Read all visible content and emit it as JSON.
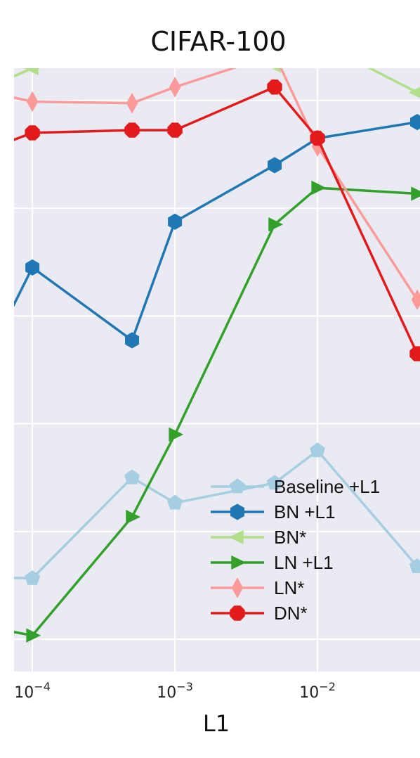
{
  "chart_data": {
    "type": "line",
    "title": "CIFAR-100",
    "xlabel": "L1",
    "ylabel": "",
    "x_scale": "log",
    "xlim": [
      5e-05,
      0.05
    ],
    "ylim": [
      -0.6,
      10.6
    ],
    "grid": true,
    "legend_position": "lower-right",
    "x_ticks": [
      {
        "value": 0.0001,
        "base": "10",
        "exp": "−4"
      },
      {
        "value": 0.001,
        "base": "10",
        "exp": "−3"
      },
      {
        "value": 0.01,
        "base": "10",
        "exp": "−2"
      }
    ],
    "y_tick_values": [
      0,
      2,
      4,
      6,
      8,
      10
    ],
    "x": [
      5e-05,
      0.0001,
      0.0005,
      0.001,
      0.005,
      0.01,
      0.05
    ],
    "series": [
      {
        "name": "Baseline +L1",
        "color": "#a6cee3",
        "marker": "pentagon",
        "values": [
          1.15,
          1.13,
          3.0,
          2.53,
          2.9,
          3.5,
          1.35
        ]
      },
      {
        "name": "BN +L1",
        "color": "#1f78b4",
        "marker": "hexagon",
        "values": [
          5.3,
          6.9,
          5.55,
          7.75,
          8.8,
          9.3,
          9.6
        ]
      },
      {
        "name": "BN*",
        "color": "#b2df8a",
        "marker": "triangle-left",
        "values": [
          10.25,
          10.6,
          null,
          10.8,
          10.65,
          11.1,
          10.15
        ]
      },
      {
        "name": "LN +L1",
        "color": "#33a02c",
        "marker": "triangle-right",
        "values": [
          0.22,
          0.07,
          2.27,
          3.8,
          7.7,
          8.38,
          8.27
        ]
      },
      {
        "name": "LN*",
        "color": "#fb9a99",
        "marker": "thin-diamond",
        "values": [
          10.15,
          9.98,
          9.95,
          10.25,
          10.85,
          9.15,
          6.3
        ]
      },
      {
        "name": "DN*",
        "color": "#e31a1c",
        "marker": "octagon",
        "values": [
          9.1,
          9.4,
          9.45,
          9.45,
          10.25,
          9.3,
          5.3
        ]
      }
    ]
  }
}
